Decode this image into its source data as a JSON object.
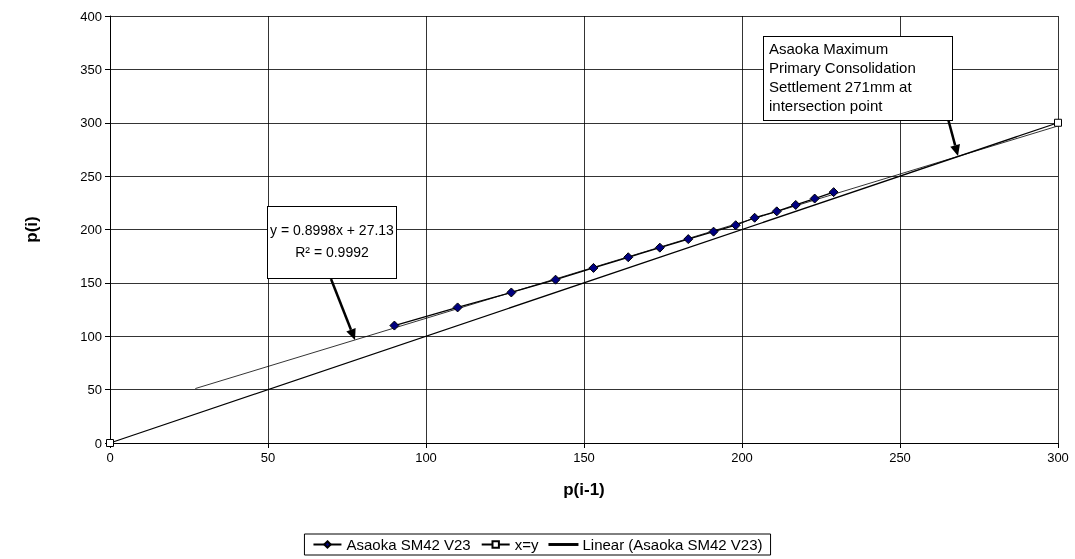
{
  "chart_data": {
    "type": "line",
    "xlabel": "p(i-1)",
    "ylabel": "p(i)",
    "xlim": [
      0,
      300
    ],
    "xticks": [
      0,
      50,
      100,
      150,
      200,
      250,
      300
    ],
    "ylim": [
      0,
      400
    ],
    "yticks": [
      0,
      50,
      100,
      150,
      200,
      250,
      300,
      350,
      400
    ],
    "grid": true,
    "legend": "bottom",
    "line_style": "solid",
    "series": [
      {
        "name": "Asaoka SM42 V23",
        "color": "#000080",
        "marker": "diamond",
        "x": [
          90,
          110,
          127,
          141,
          153,
          164,
          174,
          183,
          191,
          198,
          204,
          211,
          217,
          223,
          229
        ],
        "values": [
          110,
          127,
          141,
          153,
          164,
          174,
          183,
          191,
          198,
          204,
          211,
          217,
          223,
          229,
          235
        ]
      },
      {
        "name": "x=y",
        "color": "#000000",
        "marker": "square",
        "x": [
          0,
          300
        ],
        "values": [
          0,
          300
        ]
      },
      {
        "name": "Linear (Asaoka SM42 V23)",
        "color": "#000000",
        "marker": "none",
        "x": [
          27,
          300
        ],
        "values": [
          51,
          297
        ]
      }
    ],
    "annotations": [
      "y = 0.8998x + 27.13\nR² = 0.9992",
      "Asaoka Maximum\nPrimary Consolidation\nSettlement 271mm at\nintersection point"
    ]
  }
}
